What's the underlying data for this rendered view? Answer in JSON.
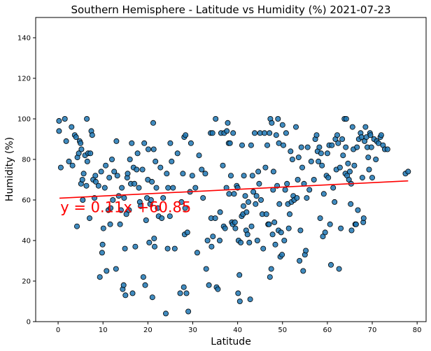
{
  "chart_data": {
    "type": "scatter",
    "title": "Southern Hemisphere - Latitude vs Humidity (%) 2021-07-23",
    "xlabel": "Latitude",
    "ylabel": "Humidity (%)",
    "xlim": [
      -5,
      82
    ],
    "ylim": [
      0,
      150
    ],
    "x_ticks": [
      0,
      10,
      20,
      30,
      40,
      50,
      60,
      70,
      80
    ],
    "y_ticks": [
      0,
      20,
      40,
      60,
      80,
      100,
      120,
      140
    ],
    "grid": false,
    "legend": "none",
    "marker_fill": "#1f77b4",
    "marker_edge": "#000000",
    "regression": {
      "slope": 0.11,
      "intercept": 60.85,
      "x_range": [
        0.3,
        78
      ],
      "color": "#ff0000",
      "equation": "y = 0.11x +60.85",
      "label_anchor": [
        0.5,
        54
      ]
    },
    "points": [
      [
        0.2,
        99
      ],
      [
        0.2,
        94
      ],
      [
        0.6,
        76
      ],
      [
        1.5,
        100
      ],
      [
        1.8,
        89
      ],
      [
        2.4,
        79
      ],
      [
        3,
        96
      ],
      [
        3.2,
        77
      ],
      [
        3.7,
        92
      ],
      [
        4,
        91
      ],
      [
        4.2,
        47
      ],
      [
        4.3,
        81
      ],
      [
        4.6,
        83
      ],
      [
        4.8,
        89
      ],
      [
        5,
        88
      ],
      [
        5.1,
        68
      ],
      [
        5.2,
        85
      ],
      [
        5.4,
        70
      ],
      [
        5.5,
        60
      ],
      [
        5.7,
        73
      ],
      [
        6,
        82
      ],
      [
        6.3,
        67
      ],
      [
        6.4,
        100
      ],
      [
        6.5,
        79
      ],
      [
        6.7,
        83
      ],
      [
        7,
        51
      ],
      [
        7.2,
        83
      ],
      [
        7.4,
        94
      ],
      [
        7.6,
        92
      ],
      [
        7.8,
        70
      ],
      [
        8.1,
        61
      ],
      [
        8.3,
        72
      ],
      [
        8.4,
        69
      ],
      [
        9,
        67
      ],
      [
        9.3,
        22
      ],
      [
        9.6,
        74
      ],
      [
        9.8,
        34
      ],
      [
        9.9,
        38
      ],
      [
        10.1,
        46
      ],
      [
        10.4,
        66
      ],
      [
        10.6,
        77
      ],
      [
        10.8,
        25
      ],
      [
        11.2,
        55
      ],
      [
        11.4,
        71
      ],
      [
        11.6,
        48
      ],
      [
        11.7,
        56
      ],
      [
        12,
        80
      ],
      [
        12.2,
        60
      ],
      [
        12.5,
        74
      ],
      [
        12.9,
        26
      ],
      [
        13,
        89
      ],
      [
        13.2,
        72
      ],
      [
        13.5,
        62
      ],
      [
        13.8,
        48
      ],
      [
        14,
        55
      ],
      [
        14.2,
        66
      ],
      [
        14.4,
        16
      ],
      [
        14.6,
        18
      ],
      [
        14.7,
        61
      ],
      [
        14.9,
        36
      ],
      [
        15,
        13
      ],
      [
        15.2,
        53
      ],
      [
        15.4,
        71
      ],
      [
        15.5,
        73
      ],
      [
        15.8,
        55
      ],
      [
        16,
        80
      ],
      [
        16.2,
        68
      ],
      [
        16.4,
        88
      ],
      [
        16.6,
        14
      ],
      [
        16.8,
        76
      ],
      [
        17,
        68
      ],
      [
        17.2,
        37
      ],
      [
        17.5,
        75
      ],
      [
        17.7,
        83
      ],
      [
        18,
        66
      ],
      [
        18.2,
        59
      ],
      [
        18.4,
        57
      ],
      [
        18.8,
        75
      ],
      [
        19,
        22
      ],
      [
        19.2,
        88
      ],
      [
        19.4,
        18
      ],
      [
        19.6,
        50
      ],
      [
        19.8,
        61
      ],
      [
        20,
        70
      ],
      [
        20.1,
        85
      ],
      [
        20.3,
        39
      ],
      [
        20.5,
        58
      ],
      [
        20.7,
        60
      ],
      [
        20.9,
        69
      ],
      [
        21,
        12
      ],
      [
        21.2,
        98
      ],
      [
        21.3,
        85
      ],
      [
        21.4,
        41
      ],
      [
        21.5,
        37
      ],
      [
        21.7,
        79
      ],
      [
        21.9,
        66
      ],
      [
        22.2,
        56
      ],
      [
        22.4,
        52
      ],
      [
        22.8,
        76
      ],
      [
        23.1,
        51
      ],
      [
        23.4,
        61
      ],
      [
        24,
        4
      ],
      [
        24.2,
        73
      ],
      [
        24.4,
        36
      ],
      [
        24.5,
        66
      ],
      [
        24.9,
        52
      ],
      [
        25,
        88
      ],
      [
        25.3,
        79
      ],
      [
        25.6,
        66
      ],
      [
        26,
        36
      ],
      [
        26.6,
        83
      ],
      [
        27.2,
        14
      ],
      [
        27.5,
        59
      ],
      [
        27.8,
        73
      ],
      [
        28,
        17
      ],
      [
        28.1,
        91
      ],
      [
        28.2,
        43
      ],
      [
        28.3,
        56
      ],
      [
        28.4,
        92
      ],
      [
        28.6,
        14
      ],
      [
        28.8,
        44
      ],
      [
        29,
        5
      ],
      [
        29.4,
        64
      ],
      [
        29.6,
        88
      ],
      [
        29.9,
        72
      ],
      [
        30.6,
        66
      ],
      [
        31,
        34
      ],
      [
        31.4,
        82
      ],
      [
        32,
        75
      ],
      [
        32.3,
        61
      ],
      [
        32.8,
        73
      ],
      [
        33,
        26
      ],
      [
        33.3,
        40
      ],
      [
        33.6,
        18
      ],
      [
        34,
        93
      ],
      [
        34.1,
        51
      ],
      [
        34.2,
        37
      ],
      [
        34.4,
        93
      ],
      [
        34.5,
        42
      ],
      [
        35,
        51
      ],
      [
        35.1,
        100
      ],
      [
        35.3,
        17
      ],
      [
        35.6,
        16
      ],
      [
        36,
        40
      ],
      [
        36.1,
        54
      ],
      [
        36.3,
        93
      ],
      [
        36.7,
        77
      ],
      [
        36.9,
        47
      ],
      [
        37,
        93
      ],
      [
        37.2,
        46
      ],
      [
        37.5,
        66
      ],
      [
        37.6,
        94
      ],
      [
        37.8,
        98
      ],
      [
        38,
        88
      ],
      [
        38.1,
        63
      ],
      [
        38.3,
        88
      ],
      [
        38.5,
        72
      ],
      [
        38.7,
        49
      ],
      [
        38.9,
        48
      ],
      [
        39,
        93
      ],
      [
        39.2,
        63
      ],
      [
        39.4,
        49
      ],
      [
        39.5,
        46
      ],
      [
        39.8,
        67
      ],
      [
        40,
        66
      ],
      [
        40.1,
        14
      ],
      [
        40.2,
        40
      ],
      [
        40.4,
        23
      ],
      [
        40.5,
        10
      ],
      [
        40.7,
        39
      ],
      [
        40.9,
        52
      ],
      [
        41,
        87
      ],
      [
        41.2,
        53
      ],
      [
        41.3,
        57
      ],
      [
        41.4,
        72
      ],
      [
        41.7,
        62
      ],
      [
        41.9,
        45
      ],
      [
        42,
        54
      ],
      [
        42.2,
        43
      ],
      [
        42.4,
        59
      ],
      [
        42.6,
        39
      ],
      [
        42.8,
        11
      ],
      [
        43,
        87
      ],
      [
        43.1,
        47
      ],
      [
        43.3,
        72
      ],
      [
        43.5,
        64
      ],
      [
        43.8,
        93
      ],
      [
        44,
        58
      ],
      [
        44.2,
        62
      ],
      [
        44.4,
        40
      ],
      [
        44.6,
        74
      ],
      [
        44.8,
        68
      ],
      [
        45,
        93
      ],
      [
        45.2,
        60
      ],
      [
        45.5,
        53
      ],
      [
        45.7,
        36
      ],
      [
        46,
        93
      ],
      [
        46.2,
        76
      ],
      [
        46.4,
        53
      ],
      [
        46.6,
        87
      ],
      [
        46.8,
        48
      ],
      [
        47,
        48
      ],
      [
        47.1,
        93
      ],
      [
        47.2,
        22
      ],
      [
        47.3,
        100
      ],
      [
        47.5,
        26
      ],
      [
        47.6,
        98
      ],
      [
        47.8,
        43
      ],
      [
        47.9,
        65
      ],
      [
        48,
        74
      ],
      [
        48.2,
        49
      ],
      [
        48.4,
        38
      ],
      [
        48.6,
        92
      ],
      [
        48.8,
        67
      ],
      [
        49,
        100
      ],
      [
        49.1,
        45
      ],
      [
        49.2,
        88
      ],
      [
        49.3,
        58
      ],
      [
        49.5,
        32
      ],
      [
        49.7,
        44
      ],
      [
        49.9,
        33
      ],
      [
        50,
        97
      ],
      [
        50.2,
        87
      ],
      [
        50.4,
        40
      ],
      [
        50.6,
        65
      ],
      [
        50.8,
        93
      ],
      [
        51,
        68
      ],
      [
        51.2,
        58
      ],
      [
        51.4,
        46
      ],
      [
        51.6,
        53
      ],
      [
        51.8,
        84
      ],
      [
        52,
        59
      ],
      [
        52.2,
        80
      ],
      [
        52.4,
        62
      ],
      [
        52.6,
        60
      ],
      [
        53,
        96
      ],
      [
        53.2,
        61
      ],
      [
        53.4,
        70
      ],
      [
        53.6,
        81
      ],
      [
        53.8,
        30
      ],
      [
        54,
        45
      ],
      [
        54.2,
        86
      ],
      [
        54.4,
        76
      ],
      [
        54.6,
        25
      ],
      [
        54.8,
        68
      ],
      [
        55,
        33
      ],
      [
        55.2,
        35
      ],
      [
        55.4,
        61
      ],
      [
        55.6,
        86
      ],
      [
        56,
        65
      ],
      [
        56.4,
        79
      ],
      [
        57,
        70
      ],
      [
        57.3,
        90
      ],
      [
        57.6,
        92
      ],
      [
        57.8,
        84
      ],
      [
        58,
        79
      ],
      [
        58.2,
        86
      ],
      [
        58.4,
        51
      ],
      [
        58.6,
        83
      ],
      [
        58.8,
        77
      ],
      [
        59,
        42
      ],
      [
        59.2,
        63
      ],
      [
        59.5,
        44
      ],
      [
        59.8,
        72
      ],
      [
        60,
        83
      ],
      [
        60.2,
        71
      ],
      [
        60.4,
        87
      ],
      [
        60.6,
        48
      ],
      [
        60.8,
        28
      ],
      [
        61,
        87
      ],
      [
        61.3,
        66
      ],
      [
        61.6,
        59
      ],
      [
        61.8,
        90
      ],
      [
        62,
        75
      ],
      [
        62.2,
        92
      ],
      [
        62.4,
        88
      ],
      [
        62.6,
        26
      ],
      [
        62.8,
        76
      ],
      [
        63,
        46
      ],
      [
        63.3,
        90
      ],
      [
        63.5,
        82
      ],
      [
        63.8,
        100
      ],
      [
        64,
        73
      ],
      [
        64.1,
        86
      ],
      [
        64.2,
        100
      ],
      [
        64.4,
        72
      ],
      [
        64.6,
        78
      ],
      [
        64.8,
        70
      ],
      [
        65,
        74
      ],
      [
        65.2,
        58
      ],
      [
        65.3,
        68
      ],
      [
        65.4,
        45
      ],
      [
        65.6,
        96
      ],
      [
        65.8,
        85
      ],
      [
        66,
        77
      ],
      [
        66.2,
        48
      ],
      [
        66.4,
        48
      ],
      [
        66.6,
        86
      ],
      [
        66.8,
        55
      ],
      [
        67,
        90
      ],
      [
        67.4,
        93
      ],
      [
        67.6,
        91
      ],
      [
        67.8,
        71
      ],
      [
        68,
        49
      ],
      [
        68.1,
        51
      ],
      [
        68.3,
        89
      ],
      [
        68.5,
        96
      ],
      [
        68.7,
        91
      ],
      [
        68.9,
        86
      ],
      [
        69.1,
        81
      ],
      [
        69.3,
        75
      ],
      [
        69.5,
        93
      ],
      [
        69.6,
        92
      ],
      [
        69.8,
        86
      ],
      [
        70,
        71
      ],
      [
        70.4,
        90
      ],
      [
        70.8,
        80
      ],
      [
        71,
        89
      ],
      [
        71.4,
        88
      ],
      [
        71.8,
        91
      ],
      [
        72,
        92
      ],
      [
        72.4,
        87
      ],
      [
        72.8,
        85
      ],
      [
        73.4,
        85
      ],
      [
        77.4,
        73
      ],
      [
        78,
        74
      ]
    ]
  }
}
